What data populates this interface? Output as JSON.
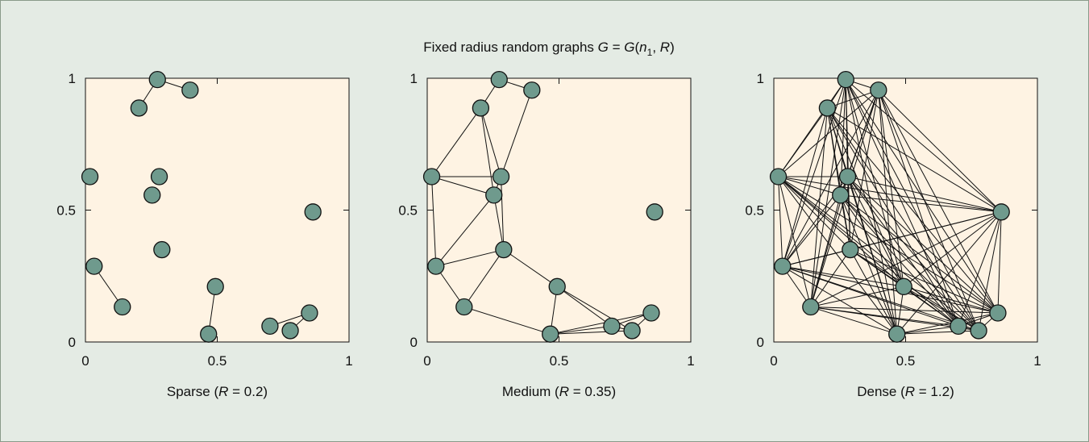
{
  "title": {
    "prefix": "Fixed radius random graphs ",
    "G": "G",
    "eq": " = ",
    "G2": "G",
    "open": "(",
    "n": "n",
    "sub": "1",
    "comma": ", ",
    "R": "R",
    "close": ")"
  },
  "colors": {
    "panel_bg": "#fef3e3",
    "node_fill": "#6f9a8d",
    "node_stroke": "#111111",
    "edge": "#111111"
  },
  "chart_data": {
    "type": "scatter",
    "xlim": [
      0,
      1
    ],
    "ylim": [
      0,
      1
    ],
    "x_ticks": [
      "0",
      "0.5",
      "1"
    ],
    "y_ticks": [
      "0",
      "0.5",
      "1"
    ],
    "x_tick_values": [
      0,
      0.5,
      1
    ],
    "y_tick_values": [
      0,
      0.5,
      1
    ],
    "nodes": [
      {
        "id": "a",
        "x": 0.273,
        "y": 0.995
      },
      {
        "id": "b",
        "x": 0.397,
        "y": 0.955
      },
      {
        "id": "c",
        "x": 0.203,
        "y": 0.887
      },
      {
        "id": "d",
        "x": 0.017,
        "y": 0.627
      },
      {
        "id": "e",
        "x": 0.28,
        "y": 0.627
      },
      {
        "id": "f",
        "x": 0.253,
        "y": 0.557
      },
      {
        "id": "g",
        "x": 0.863,
        "y": 0.493
      },
      {
        "id": "h",
        "x": 0.29,
        "y": 0.35
      },
      {
        "id": "i",
        "x": 0.033,
        "y": 0.287
      },
      {
        "id": "j",
        "x": 0.14,
        "y": 0.133
      },
      {
        "id": "k",
        "x": 0.493,
        "y": 0.21
      },
      {
        "id": "l",
        "x": 0.467,
        "y": 0.03
      },
      {
        "id": "m",
        "x": 0.7,
        "y": 0.06
      },
      {
        "id": "n",
        "x": 0.777,
        "y": 0.043
      },
      {
        "id": "o",
        "x": 0.85,
        "y": 0.11
      }
    ],
    "panels": [
      {
        "name": "sparse",
        "label": {
          "pre": "Sparse (",
          "R": "R",
          "post": " = 0.2)"
        },
        "edges": [
          [
            "a",
            "b"
          ],
          [
            "a",
            "c"
          ],
          [
            "i",
            "j"
          ],
          [
            "k",
            "l"
          ],
          [
            "m",
            "o"
          ],
          [
            "n",
            "o"
          ]
        ]
      },
      {
        "name": "medium",
        "label": {
          "pre": "Medium (",
          "R": "R",
          "post": " = 0.35)"
        },
        "edges": [
          [
            "a",
            "b"
          ],
          [
            "a",
            "c"
          ],
          [
            "b",
            "e"
          ],
          [
            "c",
            "e"
          ],
          [
            "c",
            "f"
          ],
          [
            "c",
            "d"
          ],
          [
            "d",
            "e"
          ],
          [
            "d",
            "f"
          ],
          [
            "d",
            "i"
          ],
          [
            "e",
            "f"
          ],
          [
            "e",
            "h"
          ],
          [
            "f",
            "h"
          ],
          [
            "f",
            "i"
          ],
          [
            "h",
            "i"
          ],
          [
            "h",
            "j"
          ],
          [
            "i",
            "j"
          ],
          [
            "h",
            "k"
          ],
          [
            "j",
            "l"
          ],
          [
            "k",
            "l"
          ],
          [
            "k",
            "m"
          ],
          [
            "k",
            "n"
          ],
          [
            "l",
            "m"
          ],
          [
            "l",
            "n"
          ],
          [
            "l",
            "o"
          ],
          [
            "m",
            "n"
          ],
          [
            "m",
            "o"
          ],
          [
            "n",
            "o"
          ]
        ]
      },
      {
        "name": "dense",
        "label": {
          "pre": "Dense (",
          "R": "R",
          "post": " = 1.2)"
        },
        "edges": "all"
      }
    ]
  }
}
